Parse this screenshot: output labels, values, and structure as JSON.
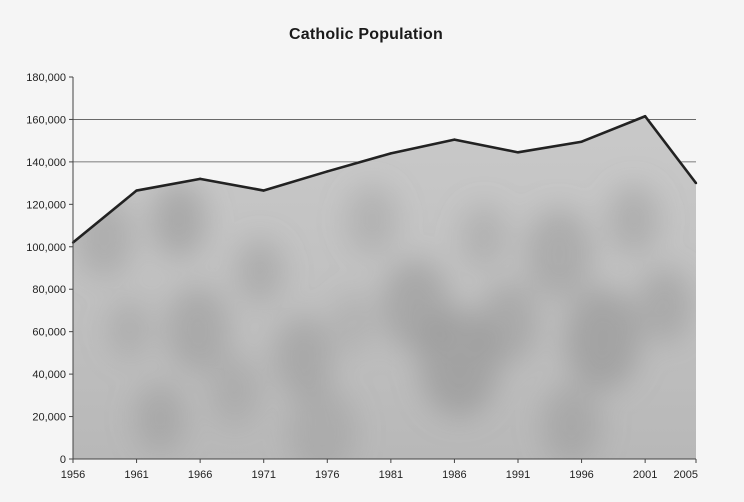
{
  "chart_data": {
    "type": "area",
    "title": "Catholic Population",
    "xlabel": "",
    "ylabel": "",
    "x": [
      1956,
      1961,
      1966,
      1971,
      1976,
      1981,
      1986,
      1991,
      1996,
      2001,
      2005
    ],
    "x_tick_labels": [
      "1956",
      "1961",
      "1966",
      "1971",
      "1976",
      "1981",
      "1986",
      "1991",
      "1996",
      "2001",
      "2005"
    ],
    "values": [
      102000,
      126500,
      132000,
      126500,
      135500,
      144000,
      150500,
      144500,
      149500,
      161500,
      130000
    ],
    "ylim": [
      0,
      180000
    ],
    "y_ticks": [
      0,
      20000,
      40000,
      60000,
      80000,
      100000,
      120000,
      140000,
      160000,
      180000
    ],
    "y_tick_labels": [
      "0",
      "20,000",
      "40,000",
      "60,000",
      "80,000",
      "100,000",
      "120,000",
      "140,000",
      "160,000",
      "180,000"
    ],
    "gridlines_at": [
      140000,
      160000
    ],
    "legend": "none",
    "colors": {
      "fill": "#cfcfcf",
      "fill_dark": "#8a8a8a",
      "line": "#222222",
      "axis": "#444444",
      "grid": "#555555"
    }
  }
}
